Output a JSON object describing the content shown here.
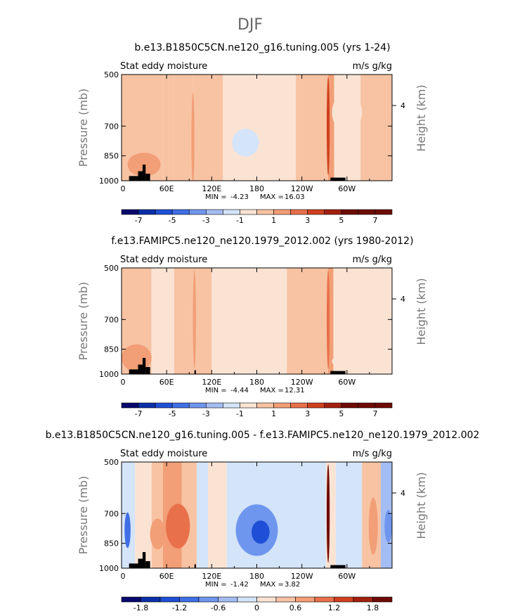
{
  "page_title": "DJF",
  "colorbar_colors": [
    "#08086e",
    "#0a2fa8",
    "#1f4fd6",
    "#3f6ee6",
    "#6f96ee",
    "#a3bdf2",
    "#d4e4f9",
    "#fbe3d4",
    "#f7c3a3",
    "#f29e76",
    "#e8704a",
    "#d0401f",
    "#a3200f",
    "#6e0a05"
  ],
  "land_color": "#000000",
  "chart_data": [
    {
      "type": "heatmap",
      "title": "b.e13.B1850C5CN.ne120_g16.tuning.005 (yrs 1-24)",
      "left_label": "Stat eddy moisture",
      "right_label": "m/s g/kg",
      "xlabel": "",
      "ylabel": "Pressure (mb)",
      "y2label": "Height (km)",
      "y_ticks": [
        "500",
        "700",
        "850",
        "1000"
      ],
      "y_tick_values": [
        500,
        700,
        850,
        1000
      ],
      "y2_ticks": [
        "4"
      ],
      "x_ticks": [
        "0",
        "60E",
        "120E",
        "180",
        "120W",
        "60W"
      ],
      "x_tick_values": [
        0,
        60,
        120,
        180,
        240,
        300
      ],
      "xlim": [
        0,
        360
      ],
      "ylim": [
        1000,
        500
      ],
      "min_label": "MIN =",
      "min_value": "-4.23",
      "max_label": "MAX =",
      "max_value": "16.03",
      "colorbar_ticks": [
        "-7",
        "-5",
        "-3",
        "-1",
        "1",
        "3",
        "5",
        "7"
      ],
      "colorbar_levels": [
        -8,
        -7,
        -6,
        -5,
        -4,
        -3,
        -2,
        -1,
        0,
        1,
        2,
        3,
        4,
        5,
        6,
        7,
        8
      ],
      "bands": [
        {
          "x0": 0,
          "x1": 8,
          "value": 0.2
        },
        {
          "x0": 8,
          "x1": 55,
          "value": 0.6
        },
        {
          "x0": 55,
          "x1": 70,
          "value": 0.8
        },
        {
          "x0": 70,
          "x1": 95,
          "value": 0.5
        },
        {
          "x0": 95,
          "x1": 135,
          "value": 0.4
        },
        {
          "x0": 135,
          "x1": 232,
          "value": -0.5
        },
        {
          "x0": 232,
          "x1": 275,
          "value": 0.3
        },
        {
          "x0": 275,
          "x1": 283,
          "value": 1.6
        },
        {
          "x0": 283,
          "x1": 318,
          "value": -0.3
        },
        {
          "x0": 318,
          "x1": 360,
          "value": 0.4
        }
      ],
      "features": [
        {
          "x": 165,
          "p": 780,
          "rx": 18,
          "rp": 70,
          "value": -1.3
        },
        {
          "x": 300,
          "p": 640,
          "rx": 20,
          "rp": 80,
          "value": -0.4
        },
        {
          "x": 30,
          "p": 900,
          "rx": 22,
          "rp": 70,
          "value": 1.2
        },
        {
          "x": 275,
          "p": 700,
          "rx": 2,
          "rp": 250,
          "value": 3.5
        },
        {
          "x": 95,
          "p": 760,
          "rx": 2,
          "rp": 220,
          "value": 1.4
        }
      ],
      "land": [
        {
          "x0": 10,
          "x1": 22,
          "ptop": 970
        },
        {
          "x0": 22,
          "x1": 28,
          "ptop": 940
        },
        {
          "x0": 28,
          "x1": 32,
          "ptop": 900
        },
        {
          "x0": 32,
          "x1": 38,
          "ptop": 955
        },
        {
          "x0": 278,
          "x1": 298,
          "ptop": 980
        }
      ]
    },
    {
      "type": "heatmap",
      "title": "f.e13.FAMIPC5.ne120_ne120.1979_2012.002 (yrs 1980-2012)",
      "left_label": "Stat eddy moisture",
      "right_label": "m/s g/kg",
      "xlabel": "",
      "ylabel": "Pressure (mb)",
      "y2label": "Height (km)",
      "y_ticks": [
        "500",
        "700",
        "850",
        "1000"
      ],
      "y_tick_values": [
        500,
        700,
        850,
        1000
      ],
      "y2_ticks": [
        "4"
      ],
      "x_ticks": [
        "0",
        "60E",
        "120E",
        "180",
        "120W",
        "60W"
      ],
      "x_tick_values": [
        0,
        60,
        120,
        180,
        240,
        300
      ],
      "xlim": [
        0,
        360
      ],
      "ylim": [
        1000,
        500
      ],
      "min_label": "MIN =",
      "min_value": "-4.44",
      "max_label": "MAX =",
      "max_value": "12.31",
      "colorbar_ticks": [
        "-7",
        "-5",
        "-3",
        "-1",
        "1",
        "3",
        "5",
        "7"
      ],
      "colorbar_levels": [
        -8,
        -7,
        -6,
        -5,
        -4,
        -3,
        -2,
        -1,
        0,
        1,
        2,
        3,
        4,
        5,
        6,
        7,
        8
      ],
      "bands": [
        {
          "x0": 0,
          "x1": 40,
          "value": 0.5
        },
        {
          "x0": 40,
          "x1": 70,
          "value": -0.3
        },
        {
          "x0": 70,
          "x1": 120,
          "value": 0.4
        },
        {
          "x0": 120,
          "x1": 220,
          "value": -0.5
        },
        {
          "x0": 220,
          "x1": 275,
          "value": 0.3
        },
        {
          "x0": 275,
          "x1": 282,
          "value": 1.4
        },
        {
          "x0": 282,
          "x1": 360,
          "value": -0.3
        }
      ],
      "features": [
        {
          "x": 250,
          "p": 580,
          "rx": 25,
          "rp": 70,
          "value": 0.4
        },
        {
          "x": 20,
          "p": 900,
          "rx": 20,
          "rp": 80,
          "value": 1.1
        },
        {
          "x": 320,
          "p": 920,
          "rx": 40,
          "rp": 60,
          "value": -0.2
        },
        {
          "x": 275,
          "p": 700,
          "rx": 2,
          "rp": 250,
          "value": 3.0
        },
        {
          "x": 97,
          "p": 700,
          "rx": 2,
          "rp": 250,
          "value": 1.2
        }
      ],
      "land": [
        {
          "x0": 10,
          "x1": 22,
          "ptop": 970
        },
        {
          "x0": 22,
          "x1": 28,
          "ptop": 940
        },
        {
          "x0": 28,
          "x1": 32,
          "ptop": 900
        },
        {
          "x0": 32,
          "x1": 38,
          "ptop": 955
        },
        {
          "x0": 97,
          "x1": 99,
          "ptop": 975
        },
        {
          "x0": 278,
          "x1": 298,
          "ptop": 980
        }
      ]
    },
    {
      "type": "heatmap",
      "title": "b.e13.B1850C5CN.ne120_g16.tuning.005 - f.e13.FAMIPC5.ne120_ne120.1979_2012.002",
      "left_label": "Stat eddy moisture",
      "right_label": "m/s g/kg",
      "xlabel": "",
      "ylabel": "Pressure (mb)",
      "y2label": "Height (km)",
      "y_ticks": [
        "500",
        "700",
        "850",
        "1000"
      ],
      "y_tick_values": [
        500,
        700,
        850,
        1000
      ],
      "y2_ticks": [
        "4"
      ],
      "x_ticks": [
        "0",
        "60E",
        "120E",
        "180",
        "120W",
        "60W"
      ],
      "x_tick_values": [
        0,
        60,
        120,
        180,
        240,
        300
      ],
      "xlim": [
        0,
        360
      ],
      "ylim": [
        1000,
        500
      ],
      "min_label": "MIN =",
      "min_value": "-1.42",
      "max_label": "MAX =",
      "max_value": "3.82",
      "colorbar_ticks": [
        "-1.8",
        "-1.2",
        "-0.6",
        "0",
        "0.6",
        "1.2",
        "1.8"
      ],
      "colorbar_levels": [
        -2.1,
        -1.8,
        -1.5,
        -1.2,
        -0.9,
        -0.6,
        -0.3,
        0,
        0.3,
        0.6,
        0.9,
        1.2,
        1.5,
        1.8,
        2.1
      ],
      "bands": [
        {
          "x0": 0,
          "x1": 18,
          "value": -0.2
        },
        {
          "x0": 18,
          "x1": 40,
          "value": 0.2
        },
        {
          "x0": 40,
          "x1": 55,
          "value": 0.45
        },
        {
          "x0": 55,
          "x1": 80,
          "value": 0.7
        },
        {
          "x0": 80,
          "x1": 100,
          "value": 0.5
        },
        {
          "x0": 100,
          "x1": 115,
          "value": -0.15
        },
        {
          "x0": 115,
          "x1": 140,
          "value": 0.2
        },
        {
          "x0": 140,
          "x1": 230,
          "value": -0.2
        },
        {
          "x0": 230,
          "x1": 272,
          "value": -0.1
        },
        {
          "x0": 272,
          "x1": 285,
          "value": 0.3
        },
        {
          "x0": 285,
          "x1": 320,
          "value": -0.15
        },
        {
          "x0": 320,
          "x1": 345,
          "value": 0.45
        },
        {
          "x0": 345,
          "x1": 360,
          "value": -0.3
        }
      ],
      "features": [
        {
          "x": 180,
          "p": 780,
          "rx": 28,
          "rp": 130,
          "value": -0.7
        },
        {
          "x": 185,
          "p": 790,
          "rx": 12,
          "rp": 60,
          "value": -1.3
        },
        {
          "x": 8,
          "p": 780,
          "rx": 4,
          "rp": 90,
          "value": -0.9
        },
        {
          "x": 75,
          "p": 760,
          "rx": 16,
          "rp": 110,
          "value": 1.0
        },
        {
          "x": 48,
          "p": 800,
          "rx": 10,
          "rp": 80,
          "value": 0.9
        },
        {
          "x": 275,
          "p": 700,
          "rx": 2,
          "rp": 250,
          "value": 2.5
        },
        {
          "x": 335,
          "p": 760,
          "rx": 6,
          "rp": 140,
          "value": 0.9
        },
        {
          "x": 355,
          "p": 760,
          "rx": 5,
          "rp": 80,
          "value": -0.7
        }
      ],
      "land": [
        {
          "x0": 10,
          "x1": 22,
          "ptop": 970
        },
        {
          "x0": 22,
          "x1": 28,
          "ptop": 940
        },
        {
          "x0": 28,
          "x1": 32,
          "ptop": 900
        },
        {
          "x0": 32,
          "x1": 38,
          "ptop": 955
        },
        {
          "x0": 97,
          "x1": 99,
          "ptop": 975
        },
        {
          "x0": 278,
          "x1": 298,
          "ptop": 980
        }
      ]
    }
  ]
}
